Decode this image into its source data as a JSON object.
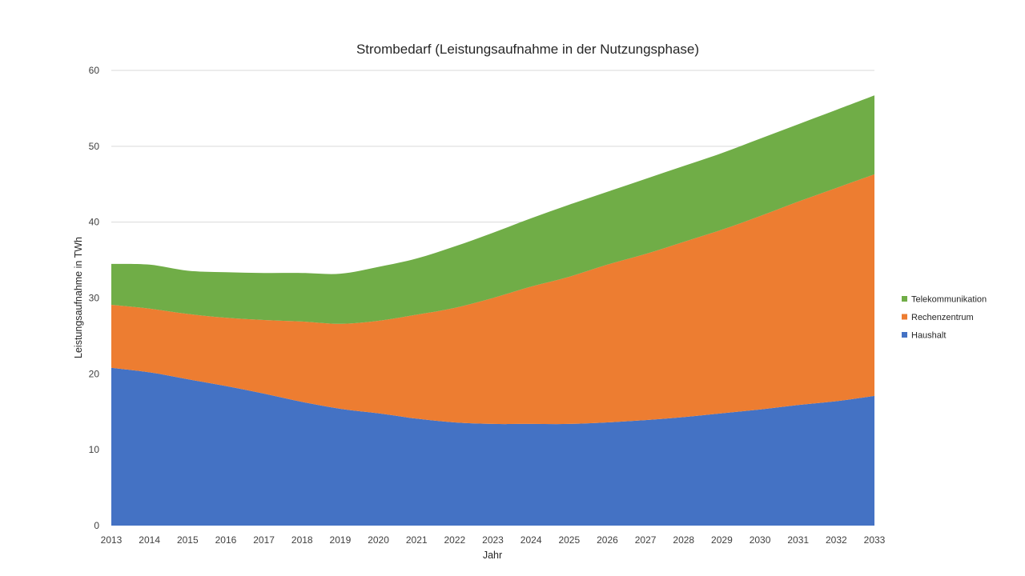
{
  "chart_data": {
    "type": "area",
    "stacked": true,
    "title": "Strombedarf (Leistungsaufnahme in der Nutzungsphase)",
    "xlabel": "Jahr",
    "ylabel": "Leistungsaufnahme in TWh",
    "ylim": [
      0,
      60
    ],
    "yticks": [
      0,
      10,
      20,
      30,
      40,
      50,
      60
    ],
    "grid": true,
    "legend_position": "right",
    "categories": [
      "2013",
      "2014",
      "2015",
      "2016",
      "2017",
      "2018",
      "2019",
      "2020",
      "2021",
      "2022",
      "2023",
      "2024",
      "2025",
      "2026",
      "2027",
      "2028",
      "2029",
      "2030",
      "2031",
      "2032",
      "2033"
    ],
    "series": [
      {
        "name": "Haushalt",
        "color": "#4472C4",
        "values": [
          20.8,
          20.2,
          19.3,
          18.4,
          17.4,
          16.3,
          15.4,
          14.8,
          14.1,
          13.6,
          13.4,
          13.4,
          13.4,
          13.6,
          13.9,
          14.3,
          14.8,
          15.3,
          15.9,
          16.4,
          17.1
        ]
      },
      {
        "name": "Rechenzentrum",
        "color": "#ED7D31",
        "values": [
          8.3,
          8.4,
          8.6,
          9.0,
          9.7,
          10.6,
          11.2,
          12.2,
          13.7,
          15.1,
          16.6,
          18.1,
          19.4,
          20.8,
          21.9,
          23.1,
          24.2,
          25.5,
          26.8,
          28.1,
          29.2
        ]
      },
      {
        "name": "Telekommunikation",
        "color": "#70AD47",
        "values": [
          5.4,
          5.8,
          5.7,
          6.0,
          6.2,
          6.4,
          6.6,
          7.1,
          7.4,
          8.1,
          8.6,
          9.0,
          9.5,
          9.6,
          9.9,
          10.0,
          10.1,
          10.2,
          10.2,
          10.3,
          10.4
        ]
      }
    ]
  }
}
